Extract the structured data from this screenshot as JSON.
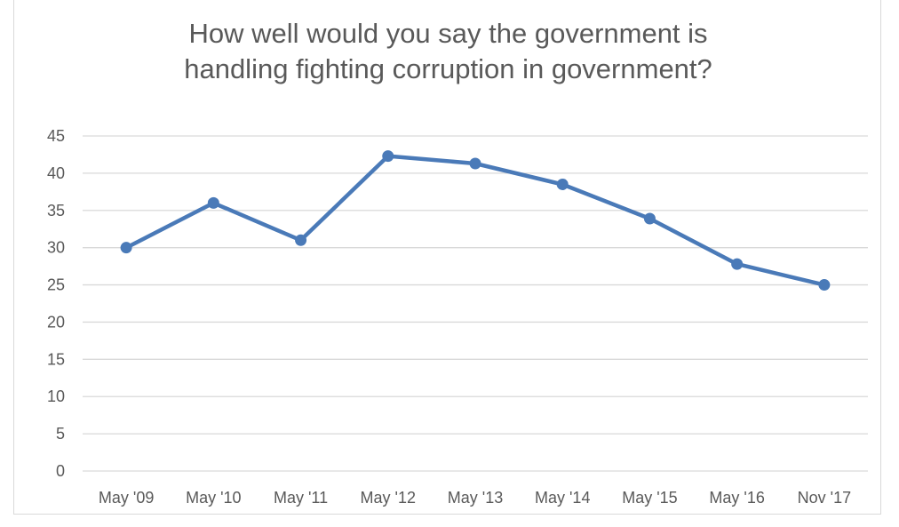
{
  "chart_data": {
    "type": "line",
    "title_lines": [
      "How well would you say the government is",
      "handling fighting corruption in government?"
    ],
    "categories": [
      "May '09",
      "May '10",
      "May '11",
      "May '12",
      "May '13",
      "May '14",
      "May '15",
      "May '16",
      "Nov '17"
    ],
    "series": [
      {
        "values": [
          30,
          36,
          31,
          42.3,
          41.3,
          38.5,
          33.9,
          27.8,
          25
        ],
        "color": "#4a7ab8"
      }
    ],
    "yticks": [
      0,
      5,
      10,
      15,
      20,
      25,
      30,
      35,
      40,
      45
    ],
    "ylim": [
      0,
      45
    ],
    "grid": true,
    "legend": "none",
    "gridline_color": "#d9d9d9",
    "text_color": "#595959"
  }
}
